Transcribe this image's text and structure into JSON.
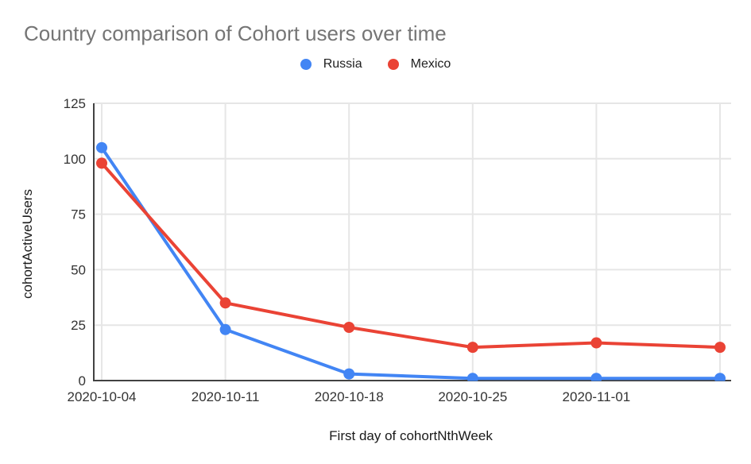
{
  "title": "Country comparison of Cohort users over time",
  "chart_data": {
    "type": "line",
    "title": "Country comparison of Cohort users over time",
    "xlabel": "First day of cohortNthWeek",
    "ylabel": "cohortActiveUsers",
    "categories": [
      "2020-10-04",
      "2020-10-11",
      "2020-10-18",
      "2020-10-25",
      "2020-11-01",
      ""
    ],
    "series": [
      {
        "name": "Russia",
        "color": "#4285f4",
        "values": [
          105,
          23,
          3,
          1,
          1,
          1
        ]
      },
      {
        "name": "Mexico",
        "color": "#ea4335",
        "values": [
          98,
          35,
          24,
          15,
          17,
          15
        ]
      }
    ],
    "ylim": [
      0,
      125
    ],
    "yticks": [
      0,
      25,
      50,
      75,
      100,
      125
    ],
    "grid": true,
    "legend_position": "top",
    "marker": "circle"
  },
  "colors": {
    "title_text": "#757575",
    "axis_label_text": "#333333",
    "axis_title_text": "#1a1a1a",
    "axis_line": "#424242",
    "gridline": "#e6e6e6",
    "background": "#ffffff",
    "series_russia": "#4285f4",
    "series_mexico": "#ea4335"
  }
}
